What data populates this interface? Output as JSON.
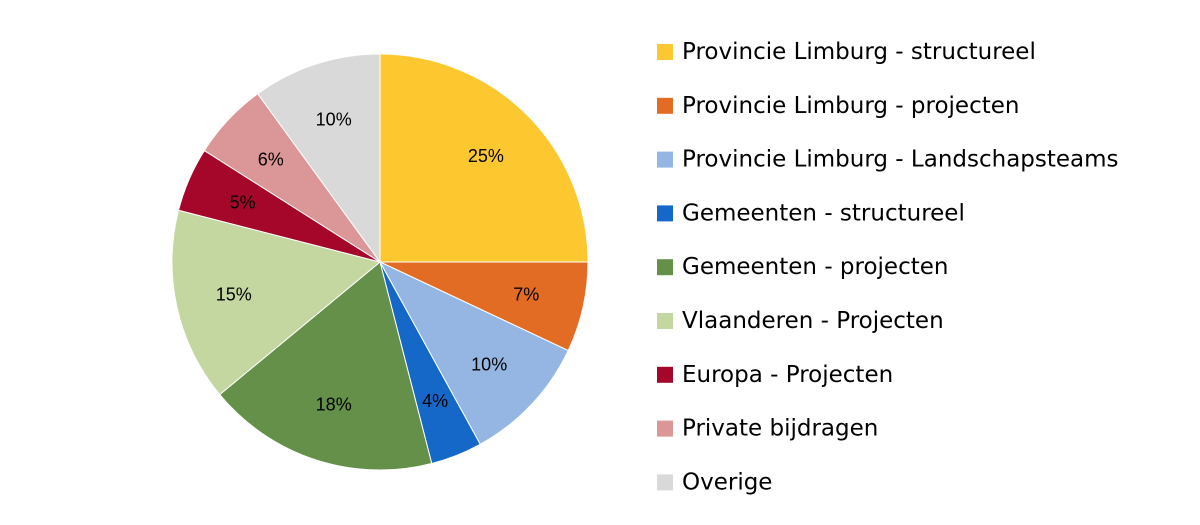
{
  "chart_data": {
    "type": "pie",
    "title": "",
    "legend_position": "right",
    "slices": [
      {
        "name": "Provincie Limburg - structureel",
        "value": 25,
        "label": "25%",
        "color": "#FDC82F"
      },
      {
        "name": "Provincie Limburg - projecten",
        "value": 7,
        "label": "7%",
        "color": "#E36C24"
      },
      {
        "name": "Provincie Limburg - Landschapsteams",
        "value": 10,
        "label": "10%",
        "color": "#95B6E3"
      },
      {
        "name": "Gemeenten - structureel",
        "value": 4,
        "label": "4%",
        "color": "#1668C8"
      },
      {
        "name": "Gemeenten - projecten",
        "value": 18,
        "label": "18%",
        "color": "#64904A"
      },
      {
        "name": "Vlaanderen - Projecten",
        "value": 15,
        "label": "15%",
        "color": "#C5D7A1"
      },
      {
        "name": "Europa - Projecten",
        "value": 5,
        "label": "5%",
        "color": "#A5072B"
      },
      {
        "name": "Private bijdragen",
        "value": 6,
        "label": "6%",
        "color": "#DB9797"
      },
      {
        "name": "Overige",
        "value": 10,
        "label": "10%",
        "color": "#D9D9D9"
      }
    ]
  }
}
